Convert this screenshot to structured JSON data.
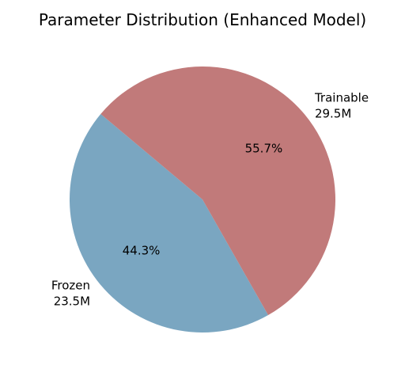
{
  "chart_data": {
    "type": "pie",
    "title": "Parameter Distribution (Enhanced Model)",
    "slices": [
      {
        "name": "Frozen",
        "value": 23.5,
        "value_label": "23.5M",
        "percent_label": "44.3%",
        "color": "#7aa6c1"
      },
      {
        "name": "Trainable",
        "value": 29.5,
        "value_label": "29.5M",
        "percent_label": "55.7%",
        "color": "#c17a7a"
      }
    ],
    "unit": "M",
    "start_angle_deg": 140,
    "direction": "counterclockwise",
    "legend": "none"
  }
}
